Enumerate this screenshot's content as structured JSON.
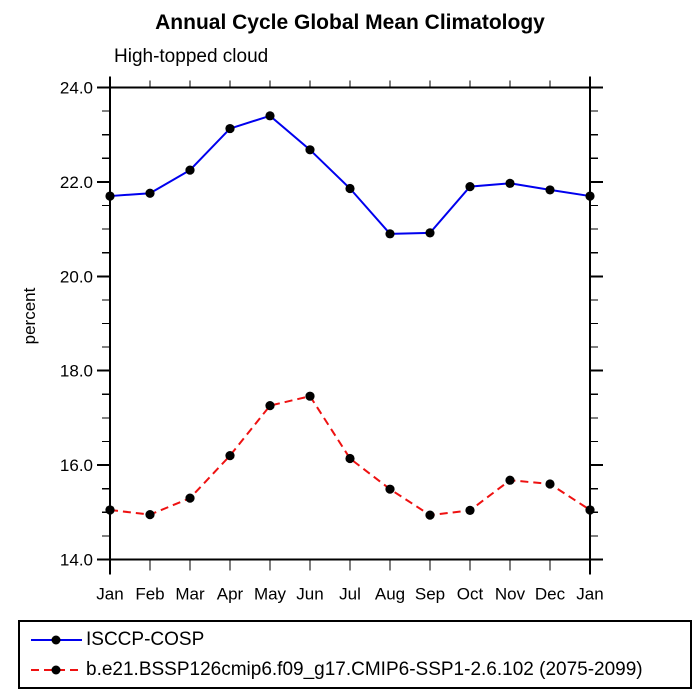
{
  "chart_data": {
    "type": "line",
    "title": "Annual Cycle Global Mean Climatology",
    "subtitle": "High-topped cloud",
    "ylabel": "percent",
    "categories": [
      "Jan",
      "Feb",
      "Mar",
      "Apr",
      "May",
      "Jun",
      "Jul",
      "Aug",
      "Sep",
      "Oct",
      "Nov",
      "Dec",
      "Jan"
    ],
    "ylim": [
      14.0,
      24.0
    ],
    "ytick_major": [
      14.0,
      16.0,
      18.0,
      20.0,
      22.0,
      24.0
    ],
    "ytick_major_labels": [
      "14.0",
      "16.0",
      "18.0",
      "20.0",
      "22.0",
      "24.0"
    ],
    "ytick_minor_step": 0.5,
    "grid": false,
    "legend_position": "bottom-left-box",
    "series": [
      {
        "name": "ISCCP-COSP",
        "color": "#0000EE",
        "line_style": "solid",
        "marker": "black-dot",
        "values": [
          21.7,
          21.76,
          22.25,
          23.13,
          23.4,
          22.68,
          21.86,
          20.9,
          20.92,
          21.9,
          21.97,
          21.83,
          21.7
        ]
      },
      {
        "name": "b.e21.BSSP126cmip6.f09_g17.CMIP6-SSP1-2.6.102 (2075-2099)",
        "color": "#EE1111",
        "line_style": "dashed",
        "marker": "black-dot",
        "values": [
          15.05,
          14.95,
          15.3,
          16.2,
          17.26,
          17.46,
          16.14,
          15.49,
          14.94,
          15.04,
          15.68,
          15.6,
          15.05
        ]
      }
    ],
    "axis_color": "#000000",
    "marker_color": "#000000"
  }
}
